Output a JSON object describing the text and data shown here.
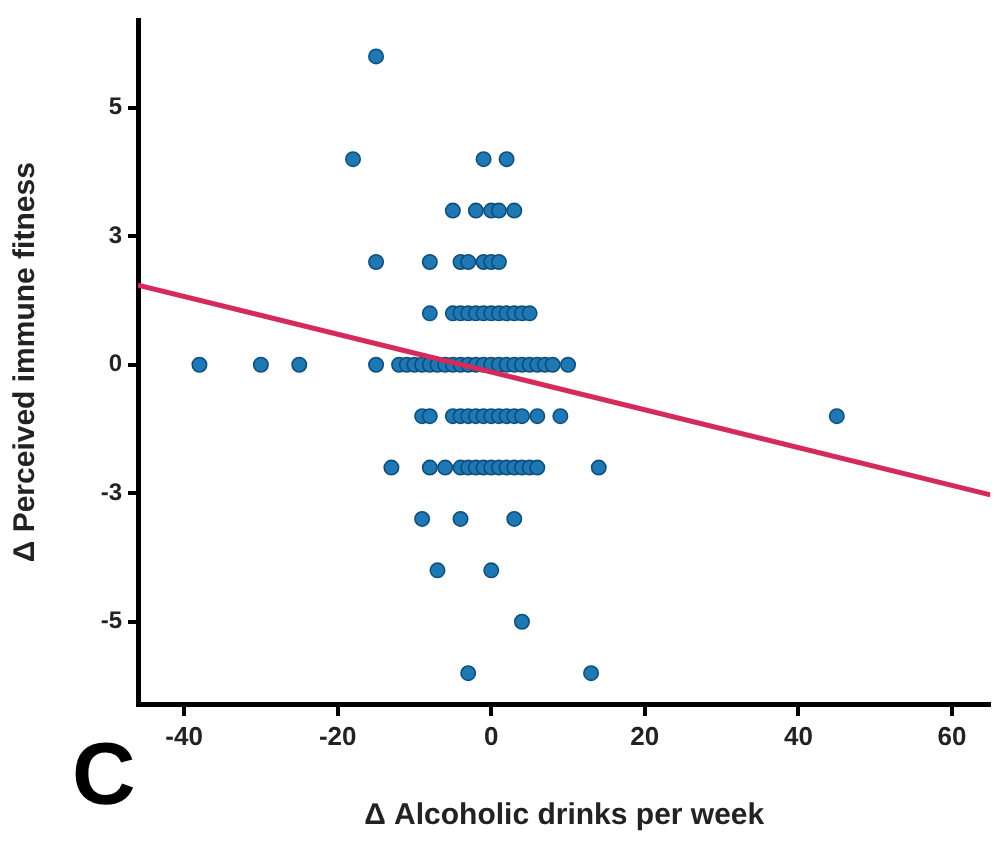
{
  "chart_data": {
    "type": "scatter",
    "xlabel": "Δ Alcoholic drinks per week",
    "ylabel": "Δ Perceived immune fitness",
    "annotations": [
      "C"
    ],
    "xlim": [
      -46,
      65
    ],
    "xticks": [
      -40,
      -20,
      0,
      20,
      40,
      60
    ],
    "ylim": [
      -6.6,
      6.7
    ],
    "yticks": [
      {
        "value": -5,
        "label": "-5"
      },
      {
        "value": -2.5,
        "label": "-3"
      },
      {
        "value": 0,
        "label": "0"
      },
      {
        "value": 2.5,
        "label": "3"
      },
      {
        "value": 5,
        "label": "5"
      }
    ],
    "grid": false,
    "legend": false,
    "marker": "circle",
    "series": [
      {
        "type": "scatter",
        "color": "#1f78b4",
        "x": [
          -15,
          -18,
          -1,
          2,
          -5,
          -2,
          0,
          1,
          3,
          -15,
          -8,
          -4,
          -3,
          -1,
          0,
          1,
          -8,
          -5,
          -4,
          -3,
          -2,
          -1,
          0,
          1,
          2,
          3,
          4,
          5,
          -38,
          -30,
          -25,
          -15,
          -12,
          -11,
          -10,
          -9,
          -8,
          -7,
          -6,
          -5,
          -4,
          -3,
          -2,
          -1,
          0,
          1,
          2,
          3,
          4,
          5,
          6,
          7,
          8,
          10,
          -9,
          -8,
          -5,
          -4,
          -3,
          -2,
          -1,
          0,
          1,
          2,
          3,
          4,
          6,
          9,
          45,
          -13,
          -8,
          -6,
          -4,
          -3,
          -2,
          -1,
          0,
          1,
          2,
          3,
          4,
          5,
          6,
          14,
          -9,
          -4,
          3,
          -7,
          0,
          4,
          -3,
          13
        ],
        "values": [
          6,
          4,
          4,
          4,
          3,
          3,
          3,
          3,
          3,
          2,
          2,
          2,
          2,
          2,
          2,
          2,
          1,
          1,
          1,
          1,
          1,
          1,
          1,
          1,
          1,
          1,
          1,
          1,
          0,
          0,
          0,
          0,
          0,
          0,
          0,
          0,
          0,
          0,
          0,
          0,
          0,
          0,
          0,
          0,
          0,
          0,
          0,
          0,
          0,
          0,
          0,
          0,
          0,
          0,
          -1,
          -1,
          -1,
          -1,
          -1,
          -1,
          -1,
          -1,
          -1,
          -1,
          -1,
          -1,
          -1,
          -1,
          -1,
          -2,
          -2,
          -2,
          -2,
          -2,
          -2,
          -2,
          -2,
          -2,
          -2,
          -2,
          -2,
          -2,
          -2,
          -2,
          -3,
          -3,
          -3,
          -4,
          -4,
          -5,
          -6,
          -6
        ]
      },
      {
        "type": "line",
        "color": "#d42a5c",
        "marker": "none",
        "x": [
          -46,
          65
        ],
        "values": [
          1.55,
          -2.53
        ]
      }
    ]
  }
}
